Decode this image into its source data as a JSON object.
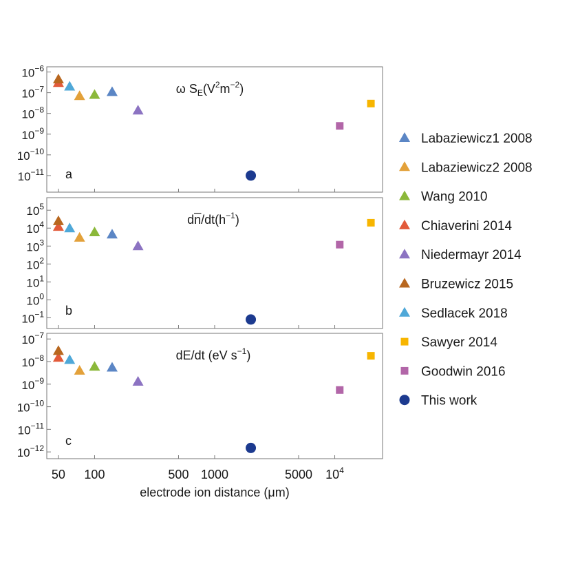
{
  "chart_data": {
    "type": "scatter",
    "xscale": "log",
    "xlim": [
      40,
      25000
    ],
    "xlabel": "electrode ion distance (μm)",
    "xticks": [
      {
        "v": 50,
        "label": "50"
      },
      {
        "v": 100,
        "label": "100"
      },
      {
        "v": 500,
        "label": "500"
      },
      {
        "v": 1000,
        "label": "1000"
      },
      {
        "v": 5000,
        "label": "5000"
      },
      {
        "v": 10000,
        "label": "10",
        "sup": "4"
      }
    ],
    "panels": [
      {
        "panel_label": "a",
        "title_main": "ω S",
        "title_sub": "E",
        "title_rest": "(V",
        "title_sup1": "2",
        "title_mid": "m",
        "title_sup2": "−2",
        "title_end": ")",
        "yscale": "log",
        "ylim": [
          -11.8,
          -5.75
        ],
        "yticks": [
          {
            "exp": -6,
            "label": "10",
            "sup": "−6"
          },
          {
            "exp": -7,
            "label": "10",
            "sup": "−7"
          },
          {
            "exp": -8,
            "label": "10",
            "sup": "−8"
          },
          {
            "exp": -9,
            "label": "10",
            "sup": "−9"
          },
          {
            "exp": -10,
            "label": "10",
            "sup": "−10"
          },
          {
            "exp": -11,
            "label": "10",
            "sup": "−11"
          }
        ],
        "points": [
          {
            "series": "Labaziewicz1 2008",
            "x": 140,
            "y": 1.1e-07
          },
          {
            "series": "Labaziewicz2 2008",
            "x": 75,
            "y": 7e-08
          },
          {
            "series": "Wang 2010",
            "x": 100,
            "y": 8e-08
          },
          {
            "series": "Chiaverini 2014",
            "x": 50,
            "y": 3e-07
          },
          {
            "series": "Niedermayr 2014",
            "x": 230,
            "y": 1.4e-08
          },
          {
            "series": "Bruzewicz 2015",
            "x": 50,
            "y": 4.5e-07
          },
          {
            "series": "Sedlacek 2018",
            "x": 62,
            "y": 2e-07
          },
          {
            "series": "Sawyer 2014",
            "x": 20000,
            "y": 3e-08
          },
          {
            "series": "Goodwin 2016",
            "x": 11000,
            "y": 2.5e-09
          },
          {
            "series": "This work",
            "x": 2000,
            "y": 1e-11
          }
        ]
      },
      {
        "panel_label": "b",
        "title_main": "dn̅/dt(h",
        "title_sup1": "−1",
        "title_end": ")",
        "yscale": "log",
        "ylim": [
          -1.6,
          5.7
        ],
        "yticks": [
          {
            "exp": 5,
            "label": "10",
            "sup": "5"
          },
          {
            "exp": 4,
            "label": "10",
            "sup": "4"
          },
          {
            "exp": 3,
            "label": "10",
            "sup": "3"
          },
          {
            "exp": 2,
            "label": "10",
            "sup": "2"
          },
          {
            "exp": 1,
            "label": "10",
            "sup": "1"
          },
          {
            "exp": 0,
            "label": "10",
            "sup": "0"
          },
          {
            "exp": -1,
            "label": "10",
            "sup": "−1"
          }
        ],
        "points": [
          {
            "series": "Labaziewicz1 2008",
            "x": 140,
            "y": 4500
          },
          {
            "series": "Labaziewicz2 2008",
            "x": 75,
            "y": 3000
          },
          {
            "series": "Wang 2010",
            "x": 100,
            "y": 6000
          },
          {
            "series": "Chiaverini 2014",
            "x": 50,
            "y": 12000
          },
          {
            "series": "Niedermayr 2014",
            "x": 230,
            "y": 1000
          },
          {
            "series": "Bruzewicz 2015",
            "x": 50,
            "y": 25000
          },
          {
            "series": "Sedlacek 2018",
            "x": 62,
            "y": 10000
          },
          {
            "series": "Sawyer 2014",
            "x": 20000,
            "y": 20000
          },
          {
            "series": "Goodwin 2016",
            "x": 11000,
            "y": 1200
          },
          {
            "series": "This work",
            "x": 2000,
            "y": 0.08
          }
        ]
      },
      {
        "panel_label": "c",
        "title_main": "dE/dt (eV s",
        "title_sup1": "−1",
        "title_end": ")",
        "yscale": "log",
        "ylim": [
          -12.3,
          -6.75
        ],
        "yticks": [
          {
            "exp": -7,
            "label": "10",
            "sup": "−7"
          },
          {
            "exp": -8,
            "label": "10",
            "sup": "−8"
          },
          {
            "exp": -9,
            "label": "10",
            "sup": "−9"
          },
          {
            "exp": -10,
            "label": "10",
            "sup": "−10"
          },
          {
            "exp": -11,
            "label": "10",
            "sup": "−11"
          },
          {
            "exp": -12,
            "label": "10",
            "sup": "−12"
          }
        ],
        "points": [
          {
            "series": "Labaziewicz1 2008",
            "x": 140,
            "y": 5.5e-09
          },
          {
            "series": "Labaziewicz2 2008",
            "x": 75,
            "y": 4e-09
          },
          {
            "series": "Wang 2010",
            "x": 100,
            "y": 6e-09
          },
          {
            "series": "Chiaverini 2014",
            "x": 50,
            "y": 1.5e-08
          },
          {
            "series": "Niedermayr 2014",
            "x": 230,
            "y": 1.3e-09
          },
          {
            "series": "Bruzewicz 2015",
            "x": 50,
            "y": 3e-08
          },
          {
            "series": "Sedlacek 2018",
            "x": 62,
            "y": 1.2e-08
          },
          {
            "series": "Sawyer 2014",
            "x": 20000,
            "y": 1.8e-08
          },
          {
            "series": "Goodwin 2016",
            "x": 11000,
            "y": 5.5e-10
          },
          {
            "series": "This work",
            "x": 2000,
            "y": 1.5e-12
          }
        ]
      }
    ],
    "legend_position": "right",
    "legend": [
      {
        "name": "Labaziewicz1 2008",
        "marker": "triangle",
        "color": "#5b86c5"
      },
      {
        "name": "Labaziewicz2 2008",
        "marker": "triangle",
        "color": "#e3a13a"
      },
      {
        "name": "Wang 2010",
        "marker": "triangle",
        "color": "#8bb83a"
      },
      {
        "name": "Chiaverini 2014",
        "marker": "triangle",
        "color": "#e25a3a"
      },
      {
        "name": "Niedermayr 2014",
        "marker": "triangle",
        "color": "#8c73c2"
      },
      {
        "name": "Bruzewicz 2015",
        "marker": "triangle",
        "color": "#b8671f"
      },
      {
        "name": "Sedlacek 2018",
        "marker": "triangle",
        "color": "#4fa8d8"
      },
      {
        "name": "Sawyer 2014",
        "marker": "square",
        "color": "#f7b500"
      },
      {
        "name": "Goodwin 2016",
        "marker": "square",
        "color": "#b266a8"
      },
      {
        "name": "This work",
        "marker": "circle",
        "color": "#1c3a8f"
      }
    ]
  }
}
